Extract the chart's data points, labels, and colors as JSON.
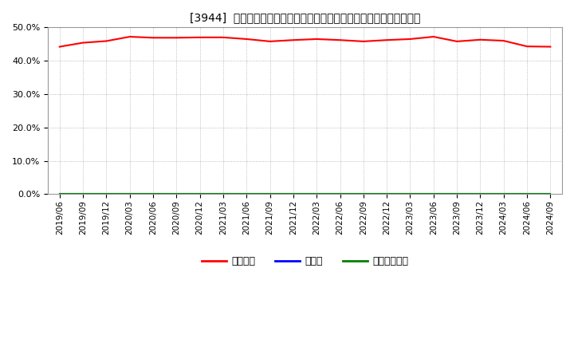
{
  "title": "[3944]  自己資本、のれん、繰延税金資産の総資産に対する比率の推移",
  "background_color": "#ffffff",
  "grid_color": "#aaaaaa",
  "ylim": [
    0.0,
    0.5
  ],
  "yticks": [
    0.0,
    0.1,
    0.2,
    0.3,
    0.4,
    0.5
  ],
  "x_labels": [
    "2019/06",
    "2019/09",
    "2019/12",
    "2020/03",
    "2020/06",
    "2020/09",
    "2020/12",
    "2021/03",
    "2021/06",
    "2021/09",
    "2021/12",
    "2022/03",
    "2022/06",
    "2022/09",
    "2022/12",
    "2023/03",
    "2023/06",
    "2023/09",
    "2023/12",
    "2024/03",
    "2024/06",
    "2024/09"
  ],
  "series": {
    "自己資本": {
      "color": "#ff0000",
      "values": [
        0.442,
        0.454,
        0.459,
        0.472,
        0.469,
        0.469,
        0.47,
        0.47,
        0.465,
        0.458,
        0.462,
        0.465,
        0.462,
        0.458,
        0.462,
        0.465,
        0.472,
        0.458,
        0.463,
        0.46,
        0.443,
        0.442
      ]
    },
    "のれん": {
      "color": "#0000ff",
      "values": [
        0.0,
        0.0,
        0.0,
        0.0,
        0.0,
        0.0,
        0.0,
        0.0,
        0.0,
        0.0,
        0.0,
        0.0,
        0.0,
        0.0,
        0.0,
        0.0,
        0.0,
        0.0,
        0.0,
        0.0,
        0.0,
        0.0
      ]
    },
    "繰延税金資産": {
      "color": "#008000",
      "values": [
        0.0,
        0.0,
        0.0,
        0.0,
        0.0,
        0.0,
        0.0,
        0.0,
        0.0,
        0.0,
        0.0,
        0.0,
        0.0,
        0.0,
        0.0,
        0.0,
        0.0,
        0.0,
        0.0,
        0.0,
        0.0,
        0.0
      ]
    }
  },
  "legend_labels": [
    "自己資本",
    "のれん",
    "繰延税金資産"
  ],
  "legend_colors": [
    "#ff0000",
    "#0000ff",
    "#008000"
  ],
  "title_fontsize": 10,
  "tick_fontsize": 7.5,
  "ytick_fontsize": 8,
  "legend_fontsize": 9,
  "line_width": 1.5
}
